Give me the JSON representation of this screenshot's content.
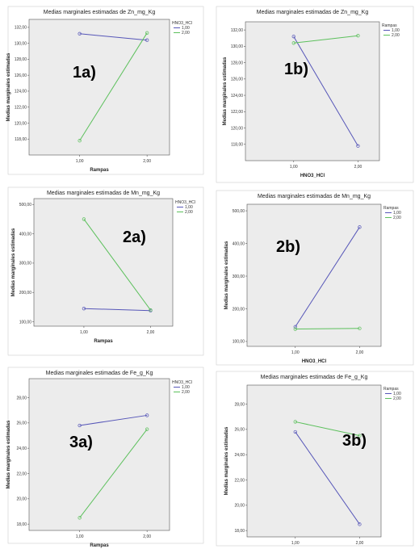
{
  "colors": {
    "series1": "#5656b8",
    "series2": "#5cc05c",
    "plot_bg": "#ececec",
    "axis": "#555555"
  },
  "chart_data": [
    {
      "id": "1a",
      "panel_label": "1a)",
      "type": "line",
      "title": "Medias marginales estimadas de Zn_mg_Kg",
      "xlabel": "Rampas",
      "ylabel": "Medias marginales estimadas",
      "legend_title": "HNO3_HCl",
      "legend_position": "top-right",
      "categories": [
        "1,00",
        "2,00"
      ],
      "ylim": [
        116,
        133
      ],
      "yticks": [
        118,
        120,
        122,
        124,
        126,
        128,
        130,
        132
      ],
      "ytick_labels": [
        "118,00",
        "120,00",
        "122,00",
        "124,00",
        "126,00",
        "128,00",
        "130,00",
        "132,00"
      ],
      "series": [
        {
          "name": "1,00",
          "values": [
            131.2,
            130.4
          ]
        },
        {
          "name": "2,00",
          "values": [
            117.8,
            131.3
          ]
        }
      ]
    },
    {
      "id": "1b",
      "panel_label": "1b)",
      "type": "line",
      "title": "Medias marginales estimadas de Zn_mg_Kg",
      "xlabel": "HNO3_HCl",
      "ylabel": "Medias marginales estimadas",
      "legend_title": "Rampas",
      "legend_position": "top-right",
      "categories": [
        "1,00",
        "2,00"
      ],
      "ylim": [
        116,
        133
      ],
      "yticks": [
        118,
        120,
        122,
        124,
        126,
        128,
        130,
        132
      ],
      "ytick_labels": [
        "118,00",
        "120,00",
        "122,00",
        "124,00",
        "126,00",
        "128,00",
        "130,00",
        "132,00"
      ],
      "series": [
        {
          "name": "1,00",
          "values": [
            131.2,
            117.8
          ]
        },
        {
          "name": "2,00",
          "values": [
            130.4,
            131.3
          ]
        }
      ]
    },
    {
      "id": "2a",
      "panel_label": "2a)",
      "type": "line",
      "title": "Medias marginales estimadas de Mn_mg_Kg",
      "xlabel": "Rampas",
      "ylabel": "Medias marginales estimadas",
      "legend_title": "HNO3_HCl",
      "legend_position": "top-right",
      "categories": [
        "1,00",
        "2,00"
      ],
      "ylim": [
        85,
        520
      ],
      "yticks": [
        100,
        200,
        300,
        400,
        500
      ],
      "ytick_labels": [
        "100,00",
        "200,00",
        "300,00",
        "400,00",
        "500,00"
      ],
      "series": [
        {
          "name": "1,00",
          "values": [
            145,
            138
          ]
        },
        {
          "name": "2,00",
          "values": [
            450,
            140
          ]
        }
      ]
    },
    {
      "id": "2b",
      "panel_label": "2b)",
      "type": "line",
      "title": "Medias marginales estimadas de Mn_mg_Kg",
      "xlabel": "HNO3_HCl",
      "ylabel": "Medias marginales estimadas",
      "legend_title": "Rampas",
      "legend_position": "top-right",
      "categories": [
        "1,00",
        "2,00"
      ],
      "ylim": [
        85,
        520
      ],
      "yticks": [
        100,
        200,
        300,
        400,
        500
      ],
      "ytick_labels": [
        "100,00",
        "200,00",
        "300,00",
        "400,00",
        "500,00"
      ],
      "series": [
        {
          "name": "1,00",
          "values": [
            145,
            450
          ]
        },
        {
          "name": "2,00",
          "values": [
            138,
            140
          ]
        }
      ]
    },
    {
      "id": "3a",
      "panel_label": "3a)",
      "type": "line",
      "title": "Medias marginales estimadas de Fe_g_Kg",
      "xlabel": "Rampas",
      "ylabel": "Medias marginales estimadas",
      "legend_title": "HNO3_HCl",
      "legend_position": "top-right",
      "categories": [
        "1,00",
        "2,00"
      ],
      "ylim": [
        17.5,
        29.5
      ],
      "yticks": [
        18,
        20,
        22,
        24,
        26,
        28
      ],
      "ytick_labels": [
        "18,00",
        "20,00",
        "22,00",
        "24,00",
        "26,00",
        "28,00"
      ],
      "series": [
        {
          "name": "1,00",
          "values": [
            25.8,
            26.6
          ]
        },
        {
          "name": "2,00",
          "values": [
            18.5,
            25.5
          ]
        }
      ]
    },
    {
      "id": "3b",
      "panel_label": "3b)",
      "type": "line",
      "title": "Medias marginales estimadas de Fe_g_Kg",
      "xlabel": "HNO3_HCl",
      "ylabel": "Medias marginales estimadas",
      "legend_title": "Rampas",
      "legend_position": "top-right",
      "categories": [
        "1,00",
        "2,00"
      ],
      "ylim": [
        17.5,
        29.5
      ],
      "yticks": [
        18,
        20,
        22,
        24,
        26,
        28
      ],
      "ytick_labels": [
        "18,00",
        "20,00",
        "22,00",
        "24,00",
        "26,00",
        "28,00"
      ],
      "series": [
        {
          "name": "1,00",
          "values": [
            25.8,
            18.5
          ]
        },
        {
          "name": "2,00",
          "values": [
            26.6,
            25.5
          ]
        }
      ]
    }
  ]
}
